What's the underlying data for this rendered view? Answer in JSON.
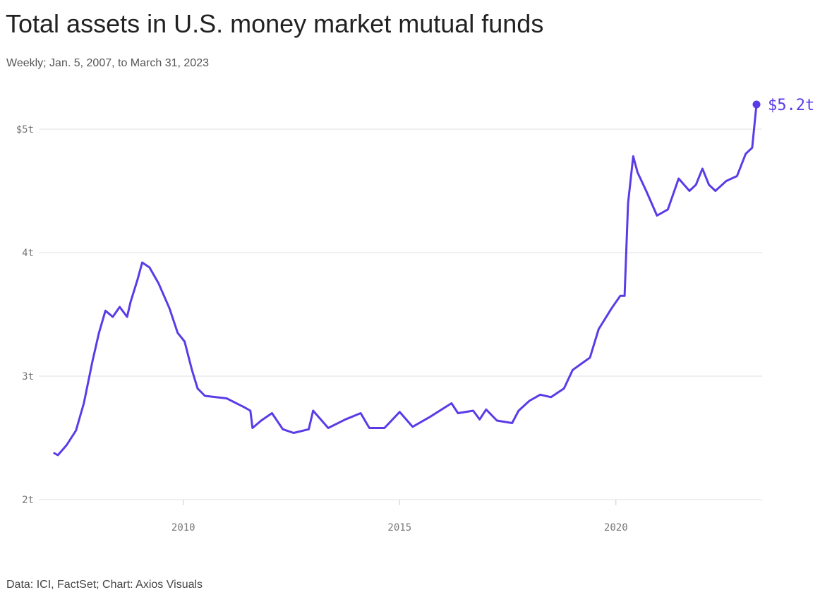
{
  "chart_data": {
    "type": "line",
    "title": "Total assets in U.S. money market mutual funds",
    "subtitle": "Weekly; Jan. 5, 2007, to March 31, 2023",
    "source": "Data: ICI, FactSet; Chart: Axios Visuals",
    "x": [
      2007.0,
      2007.1,
      2007.3,
      2007.52,
      2007.7,
      2007.9,
      2008.05,
      2008.2,
      2008.37,
      2008.53,
      2008.7,
      2008.78,
      2008.94,
      2009.05,
      2009.22,
      2009.43,
      2009.68,
      2009.87,
      2010.03,
      2010.2,
      2010.33,
      2010.5,
      2011.0,
      2011.4,
      2011.55,
      2011.6,
      2011.8,
      2012.05,
      2012.3,
      2012.55,
      2012.9,
      2013.0,
      2013.35,
      2013.75,
      2014.1,
      2014.3,
      2014.65,
      2015.0,
      2015.3,
      2015.7,
      2016.2,
      2016.35,
      2016.7,
      2016.85,
      2017.0,
      2017.25,
      2017.6,
      2017.75,
      2018.0,
      2018.25,
      2018.5,
      2018.8,
      2019.0,
      2019.2,
      2019.4,
      2019.6,
      2019.9,
      2020.1,
      2020.2,
      2020.28,
      2020.4,
      2020.5,
      2020.7,
      2020.95,
      2021.2,
      2021.45,
      2021.7,
      2021.85,
      2022.0,
      2022.15,
      2022.3,
      2022.55,
      2022.8,
      2023.0,
      2023.15,
      2023.25
    ],
    "series": [
      {
        "name": "Total assets",
        "color": "#5b3be8",
        "values": [
          2.38,
          2.36,
          2.44,
          2.56,
          2.78,
          3.12,
          3.35,
          3.53,
          3.48,
          3.56,
          3.48,
          3.6,
          3.78,
          3.92,
          3.88,
          3.75,
          3.55,
          3.35,
          3.28,
          3.05,
          2.9,
          2.84,
          2.82,
          2.75,
          2.72,
          2.58,
          2.64,
          2.7,
          2.57,
          2.54,
          2.57,
          2.72,
          2.58,
          2.65,
          2.7,
          2.58,
          2.58,
          2.71,
          2.59,
          2.67,
          2.78,
          2.7,
          2.72,
          2.65,
          2.73,
          2.64,
          2.62,
          2.72,
          2.8,
          2.85,
          2.83,
          2.9,
          3.05,
          3.1,
          3.15,
          3.38,
          3.55,
          3.65,
          3.65,
          4.4,
          4.78,
          4.65,
          4.5,
          4.3,
          4.35,
          4.6,
          4.5,
          4.55,
          4.68,
          4.55,
          4.5,
          4.58,
          4.62,
          4.8,
          4.85,
          5.2
        ]
      }
    ],
    "annotations": [
      {
        "text": "$5.2t"
      }
    ],
    "xlim": [
      2006.66,
      2023.38
    ],
    "xticks": [
      2010,
      2015,
      2020
    ],
    "ylim": [
      2,
      5.2
    ],
    "yticks": [
      {
        "value": 2,
        "label": "2t"
      },
      {
        "value": 3,
        "label": "3t"
      },
      {
        "value": 4,
        "label": "4t"
      },
      {
        "value": 5,
        "label": "$5t"
      }
    ],
    "grid": true
  }
}
